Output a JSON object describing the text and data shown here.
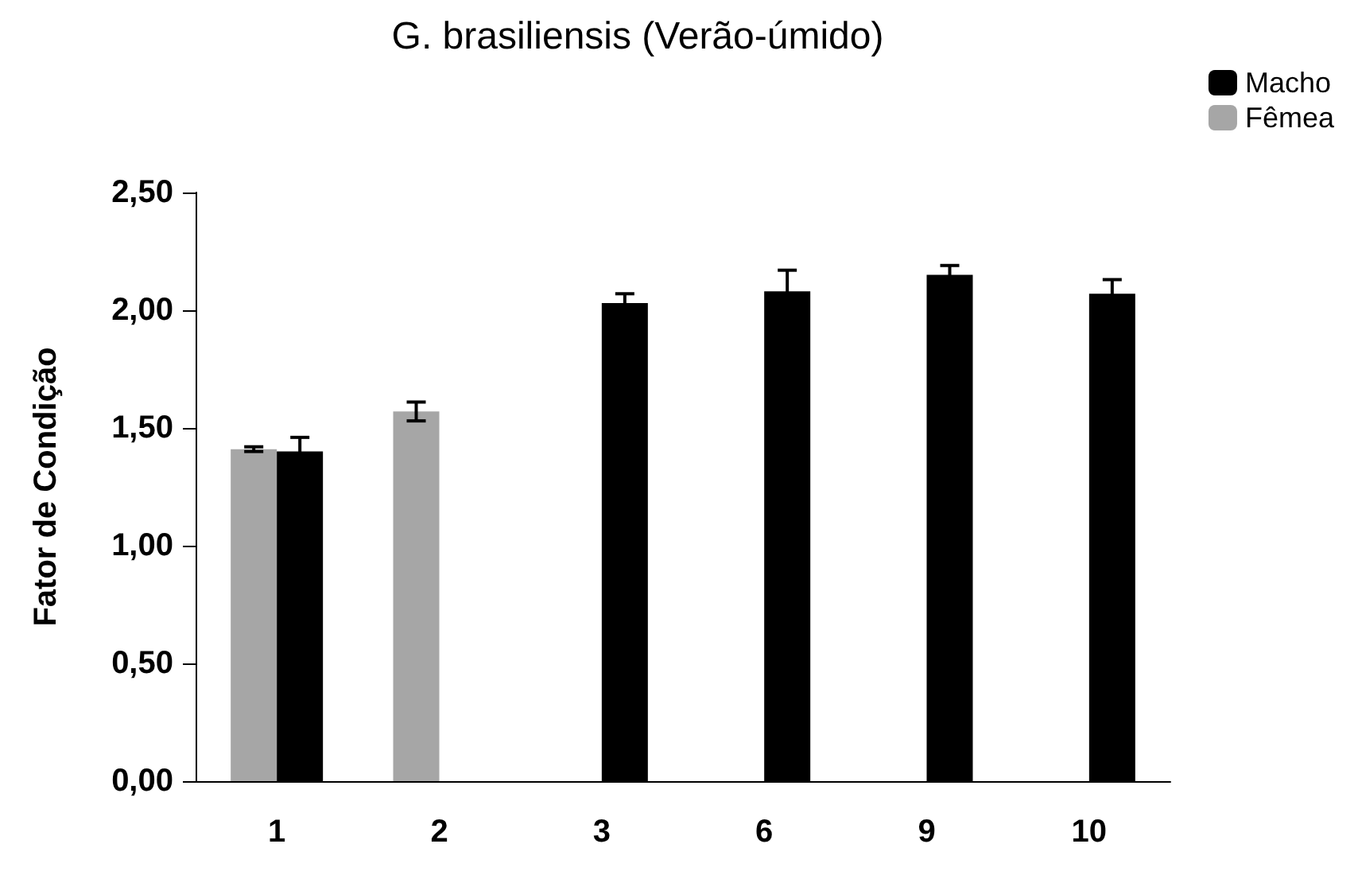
{
  "chart_data": {
    "type": "bar",
    "title": "G. brasiliensis (Verão-úmido)",
    "ylabel": "Fator de Condição",
    "categories": [
      "1",
      "2",
      "3",
      "6",
      "9",
      "10"
    ],
    "series": [
      {
        "name": "Fêmea",
        "color": "#a6a6a6",
        "values": [
          1.41,
          1.57,
          null,
          null,
          null,
          null
        ],
        "errors": [
          0.01,
          0.04,
          null,
          null,
          null,
          null
        ]
      },
      {
        "name": "Macho",
        "color": "#000000",
        "values": [
          1.4,
          null,
          2.03,
          2.08,
          2.15,
          2.07
        ],
        "errors": [
          0.06,
          null,
          0.04,
          0.09,
          0.04,
          0.06
        ]
      }
    ],
    "ylim": [
      0,
      2.5
    ],
    "yticks": [
      {
        "value": 0,
        "label": "0,00"
      },
      {
        "value": 0.5,
        "label": "0,50"
      },
      {
        "value": 1,
        "label": "1,00"
      },
      {
        "value": 1.5,
        "label": "1,50"
      },
      {
        "value": 2,
        "label": "2,00"
      },
      {
        "value": 2.5,
        "label": "2,50"
      }
    ],
    "grid": false,
    "legend": "top right"
  }
}
